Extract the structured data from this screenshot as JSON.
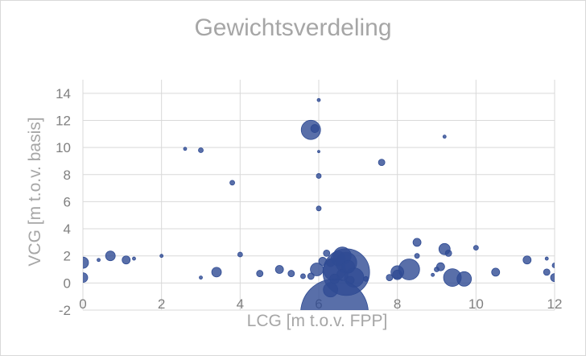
{
  "chart_data": {
    "type": "scatter",
    "title": "Gewichtsverdeling",
    "xlabel": "LCG [m t.o.v. FPP]",
    "ylabel": "VCG [m t.o.v. basis]",
    "xlim": [
      0,
      12
    ],
    "ylim": [
      -2,
      15
    ],
    "x_ticks": [
      "0",
      "2",
      "4",
      "6",
      "8",
      "10",
      "12"
    ],
    "y_ticks": [
      "-2",
      "0",
      "2",
      "4",
      "6",
      "8",
      "10",
      "12",
      "14"
    ],
    "grid": true,
    "legend": "none",
    "marker_color": "#2f4b93",
    "points": [
      {
        "x": 0.0,
        "y": 1.5,
        "s": 7
      },
      {
        "x": 0.0,
        "y": 0.4,
        "s": 6
      },
      {
        "x": 0.7,
        "y": 2.0,
        "s": 6
      },
      {
        "x": 1.1,
        "y": 1.7,
        "s": 5
      },
      {
        "x": 2.0,
        "y": 2.0,
        "s": 2
      },
      {
        "x": 2.6,
        "y": 9.9,
        "s": 2
      },
      {
        "x": 3.0,
        "y": 9.8,
        "s": 3
      },
      {
        "x": 3.0,
        "y": 0.4,
        "s": 2
      },
      {
        "x": 3.4,
        "y": 0.8,
        "s": 6
      },
      {
        "x": 3.8,
        "y": 7.4,
        "s": 3
      },
      {
        "x": 4.0,
        "y": 2.1,
        "s": 3
      },
      {
        "x": 4.5,
        "y": 0.7,
        "s": 4
      },
      {
        "x": 5.0,
        "y": 1.0,
        "s": 5
      },
      {
        "x": 5.3,
        "y": 0.7,
        "s": 4
      },
      {
        "x": 5.6,
        "y": 0.5,
        "s": 3
      },
      {
        "x": 5.8,
        "y": 11.3,
        "s": 12
      },
      {
        "x": 5.9,
        "y": 11.4,
        "s": 5
      },
      {
        "x": 6.0,
        "y": 13.5,
        "s": 2
      },
      {
        "x": 6.0,
        "y": 9.7,
        "s": 1.5
      },
      {
        "x": 6.0,
        "y": 7.9,
        "s": 3
      },
      {
        "x": 6.0,
        "y": 5.5,
        "s": 3
      },
      {
        "x": 5.95,
        "y": 1.0,
        "s": 8
      },
      {
        "x": 6.1,
        "y": 1.6,
        "s": 5
      },
      {
        "x": 6.2,
        "y": 2.2,
        "s": 4
      },
      {
        "x": 6.3,
        "y": 1.5,
        "s": 5
      },
      {
        "x": 6.4,
        "y": 1.0,
        "s": 14
      },
      {
        "x": 6.5,
        "y": 1.8,
        "s": 9
      },
      {
        "x": 6.6,
        "y": 2.0,
        "s": 11
      },
      {
        "x": 6.7,
        "y": 1.5,
        "s": 13
      },
      {
        "x": 6.7,
        "y": 0.8,
        "s": 29
      },
      {
        "x": 6.3,
        "y": -0.5,
        "s": 9
      },
      {
        "x": 6.9,
        "y": 0.4,
        "s": 12
      },
      {
        "x": 6.6,
        "y": 0.6,
        "s": 7
      },
      {
        "x": 6.4,
        "y": 0.3,
        "s": 6
      },
      {
        "x": 6.8,
        "y": 0.2,
        "s": 5
      },
      {
        "x": 5.8,
        "y": 0.5,
        "s": 4
      },
      {
        "x": 7.2,
        "y": 0.3,
        "s": 3
      },
      {
        "x": 6.75,
        "y": 1.2,
        "s": 8
      },
      {
        "x": 6.4,
        "y": -2.2,
        "s": 42
      },
      {
        "x": 7.6,
        "y": 8.9,
        "s": 4
      },
      {
        "x": 7.8,
        "y": 0.4,
        "s": 4
      },
      {
        "x": 8.0,
        "y": 0.6,
        "s": 6
      },
      {
        "x": 8.0,
        "y": 0.8,
        "s": 8
      },
      {
        "x": 8.3,
        "y": 1.0,
        "s": 13
      },
      {
        "x": 8.5,
        "y": 3.0,
        "s": 5
      },
      {
        "x": 8.5,
        "y": 2.0,
        "s": 3
      },
      {
        "x": 8.9,
        "y": 0.6,
        "s": 2
      },
      {
        "x": 9.0,
        "y": 1.0,
        "s": 3
      },
      {
        "x": 9.1,
        "y": 1.2,
        "s": 5
      },
      {
        "x": 9.2,
        "y": 2.5,
        "s": 7
      },
      {
        "x": 9.2,
        "y": 10.8,
        "s": 2
      },
      {
        "x": 9.3,
        "y": 2.2,
        "s": 4
      },
      {
        "x": 9.4,
        "y": 0.4,
        "s": 11
      },
      {
        "x": 9.7,
        "y": 0.3,
        "s": 9
      },
      {
        "x": 10.0,
        "y": 2.6,
        "s": 3
      },
      {
        "x": 10.5,
        "y": 0.8,
        "s": 5
      },
      {
        "x": 11.3,
        "y": 1.7,
        "s": 5
      },
      {
        "x": 11.8,
        "y": 0.8,
        "s": 4
      },
      {
        "x": 11.8,
        "y": 1.8,
        "s": 2
      },
      {
        "x": 12.0,
        "y": 0.4,
        "s": 5
      },
      {
        "x": 12.0,
        "y": 1.3,
        "s": 3
      },
      {
        "x": 0.4,
        "y": 1.7,
        "s": 2
      },
      {
        "x": 1.3,
        "y": 1.8,
        "s": 2
      }
    ]
  }
}
